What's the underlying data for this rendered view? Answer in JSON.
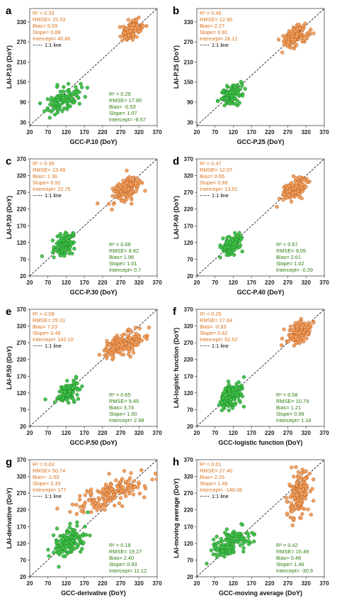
{
  "colors": {
    "green_fill": "#3fc24a",
    "green_stroke": "#1d7d22",
    "orange_fill": "#f0a060",
    "orange_stroke": "#b85a18",
    "orange_text": "#d9731f",
    "green_text": "#2f7d12",
    "identity_line": "#000000"
  },
  "legend_label": "1:1 line",
  "chart_data": [
    {
      "type": "scatter",
      "panel": "a",
      "xlabel": "GCC-P.10 (DoY)",
      "ylabel": "LAI-P.10 (DoY)",
      "xlim": [
        20,
        370
      ],
      "ylim": [
        20,
        370
      ],
      "ticks": [
        "20",
        "70",
        "120",
        "170",
        "220",
        "270",
        "320",
        "370"
      ],
      "y_ticks": [
        "30",
        "90",
        "150",
        "210",
        "270",
        "330"
      ],
      "y_tick_values": [
        30,
        90,
        150,
        210,
        270,
        330
      ],
      "stats_orange": [
        "R² = 0.33",
        "RMSE= 15.33",
        "Bias= 5.59",
        "Slope= 0.88",
        "Intercept= 40.86"
      ],
      "stats_green": [
        "R² = 0.29",
        "RMSE= 17.80",
        "Bias= -0.53",
        "Slope= 1.07",
        "Intercept= -8.57"
      ],
      "clusters": [
        {
          "series": "green",
          "x_center": 110,
          "y_center": 95,
          "x_spread": 22,
          "y_spread": 18,
          "n": 110,
          "seed": 11
        },
        {
          "series": "orange",
          "x_center": 298,
          "y_center": 305,
          "x_spread": 14,
          "y_spread": 13,
          "n": 140,
          "seed": 12
        }
      ]
    },
    {
      "type": "scatter",
      "panel": "b",
      "xlabel": "GCC-P.25 (DoY)",
      "ylabel": "LAI-P.25 (DoY)",
      "xlim": [
        20,
        370
      ],
      "ylim": [
        20,
        370
      ],
      "ticks": [
        "20",
        "70",
        "120",
        "170",
        "220",
        "270",
        "320",
        "370"
      ],
      "y_ticks": [
        "30",
        "90",
        "150",
        "210",
        "270",
        "330"
      ],
      "y_tick_values": [
        30,
        90,
        150,
        210,
        270,
        330
      ],
      "stats_orange": [
        "R² = 0.45",
        "RMSE= 12.90",
        "Bias= 2.27",
        "Slope= 0.91",
        "Intercept= 28.12"
      ],
      "stats_green": [],
      "clusters": [
        {
          "series": "green",
          "x_center": 115,
          "y_center": 112,
          "x_spread": 15,
          "y_spread": 14,
          "n": 120,
          "seed": 21
        },
        {
          "series": "orange",
          "x_center": 290,
          "y_center": 285,
          "x_spread": 17,
          "y_spread": 15,
          "n": 140,
          "seed": 22
        }
      ]
    },
    {
      "type": "scatter",
      "panel": "c",
      "xlabel": "GCC-P.30 (DoY)",
      "ylabel": "LAI-P.30 (DoY)",
      "xlim": [
        20,
        370
      ],
      "ylim": [
        20,
        370
      ],
      "ticks": [
        "20",
        "70",
        "120",
        "170",
        "220",
        "270",
        "320",
        "370"
      ],
      "y_ticks": [
        "20",
        "70",
        "120",
        "170",
        "220",
        "270",
        "320",
        "370"
      ],
      "y_tick_values": [
        20,
        70,
        120,
        170,
        220,
        270,
        320,
        370
      ],
      "stats_orange": [
        "R² = 0.39",
        "RMSE= 13.49",
        "Bias= 1.36",
        "Slope= 0.92",
        "Intercept= 22.75"
      ],
      "stats_green": [
        "R² = 0.68",
        "RMSE= 8.82",
        "Bias= 1.96",
        "Slope= 1.01",
        "Intercept= 0.7"
      ],
      "clusters": [
        {
          "series": "green",
          "x_center": 115,
          "y_center": 113,
          "x_spread": 15,
          "y_spread": 14,
          "n": 120,
          "seed": 31
        },
        {
          "series": "orange",
          "x_center": 285,
          "y_center": 278,
          "x_spread": 18,
          "y_spread": 17,
          "n": 140,
          "seed": 32
        }
      ]
    },
    {
      "type": "scatter",
      "panel": "d",
      "xlabel": "GCC-P.40 (DoY)",
      "ylabel": "LAI-P.40 (DoY)",
      "xlim": [
        20,
        370
      ],
      "ylim": [
        20,
        370
      ],
      "ticks": [
        "20",
        "70",
        "120",
        "170",
        "220",
        "270",
        "320",
        "370"
      ],
      "y_ticks": [
        "20",
        "70",
        "120",
        "170",
        "220",
        "270",
        "320",
        "370"
      ],
      "y_tick_values": [
        20,
        70,
        120,
        170,
        220,
        270,
        320,
        370
      ],
      "stats_orange": [
        "R² = 0.47",
        "RMSE= 12.07",
        "Bias= 0.65",
        "Slope= 0.99",
        "Intercept= 13.51"
      ],
      "stats_green": [
        "R² = 0.67",
        "RMSE= 9.05",
        "Bias= 2.61",
        "Slope= 1.02",
        "Intercept= -0.39"
      ],
      "clusters": [
        {
          "series": "green",
          "x_center": 118,
          "y_center": 115,
          "x_spread": 15,
          "y_spread": 14,
          "n": 120,
          "seed": 41
        },
        {
          "series": "orange",
          "x_center": 288,
          "y_center": 280,
          "x_spread": 17,
          "y_spread": 15,
          "n": 140,
          "seed": 42
        }
      ]
    },
    {
      "type": "scatter",
      "panel": "e",
      "xlabel": "GCC-P.50 (DoY)",
      "ylabel": "LAI-P.50 (DoY)",
      "xlim": [
        20,
        370
      ],
      "ylim": [
        20,
        370
      ],
      "ticks": [
        "20",
        "70",
        "120",
        "170",
        "220",
        "270",
        "320",
        "370"
      ],
      "y_ticks": [
        "20",
        "70",
        "120",
        "170",
        "220",
        "270",
        "320",
        "370"
      ],
      "y_tick_values": [
        20,
        70,
        120,
        170,
        220,
        270,
        320,
        370
      ],
      "stats_orange": [
        "R² = 0.09",
        "RMSE= 29.31",
        "Bias= 7.23",
        "Slope= 0.49",
        "Intercept= 142.10"
      ],
      "stats_green": [
        "R² = 0.65",
        "RMSE= 9.45",
        "Bias= 3.74",
        "Slope= 1.00",
        "Intercept= 2.98"
      ],
      "clusters": [
        {
          "series": "green",
          "x_center": 125,
          "y_center": 122,
          "x_spread": 15,
          "y_spread": 14,
          "n": 120,
          "seed": 51
        },
        {
          "series": "orange",
          "x_center": 275,
          "y_center": 265,
          "x_spread": 28,
          "y_spread": 16,
          "n": 160,
          "seed": 52
        }
      ]
    },
    {
      "type": "scatter",
      "panel": "f",
      "xlabel": "GCC-logistic function (DoY)",
      "ylabel": "LAI-logistic function (DoY)",
      "xlim": [
        20,
        370
      ],
      "ylim": [
        20,
        370
      ],
      "ticks": [
        "20",
        "70",
        "120",
        "170",
        "220",
        "270",
        "320",
        "370"
      ],
      "y_ticks": [
        "20",
        "70",
        "120",
        "170",
        "220",
        "270",
        "320",
        "370"
      ],
      "y_tick_values": [
        20,
        70,
        120,
        170,
        220,
        270,
        320,
        370
      ],
      "stats_orange": [
        "R² = 0.26",
        "RMSE= 17.64",
        "Bias= -0.93",
        "Slope= 0.82",
        "Intercept= 52.52"
      ],
      "stats_green": [
        "R² = 0.58",
        "RMSE= 10.79",
        "Bias= 1.21",
        "Slope= 0.99",
        "Intercept= 1.18"
      ],
      "clusters": [
        {
          "series": "green",
          "x_center": 115,
          "y_center": 113,
          "x_spread": 17,
          "y_spread": 17,
          "n": 120,
          "seed": 61
        },
        {
          "series": "orange",
          "x_center": 300,
          "y_center": 300,
          "x_spread": 17,
          "y_spread": 14,
          "n": 150,
          "seed": 62
        }
      ]
    },
    {
      "type": "scatter",
      "panel": "g",
      "xlabel": "GCC-derivative (DoY)",
      "ylabel": "LAI-derivative (DoY)",
      "xlim": [
        20,
        370
      ],
      "ylim": [
        20,
        370
      ],
      "ticks": [
        "20",
        "70",
        "120",
        "170",
        "220",
        "270",
        "320",
        "370"
      ],
      "y_ticks": [
        "20",
        "70",
        "120",
        "170",
        "220",
        "270",
        "320",
        "370"
      ],
      "y_tick_values": [
        20,
        70,
        120,
        170,
        220,
        270,
        320,
        370
      ],
      "stats_orange": [
        "R² = 0.03",
        "RMSE= 50.74",
        "Bias= -1.50",
        "Slope= 0.33",
        "Intercept= 177"
      ],
      "stats_green": [
        "R² = 0.18",
        "RMSE= 19.27",
        "Bias= 2.40",
        "Slope= 0.93",
        "Intercept= 11.12"
      ],
      "clusters": [
        {
          "series": "green",
          "x_center": 128,
          "y_center": 125,
          "x_spread": 22,
          "y_spread": 20,
          "n": 130,
          "seed": 71
        },
        {
          "series": "orange",
          "x_center": 245,
          "y_center": 270,
          "x_spread": 55,
          "y_spread": 20,
          "n": 170,
          "seed": 72
        }
      ]
    },
    {
      "type": "scatter",
      "panel": "h",
      "xlabel": "GCC-moving average (DoY)",
      "ylabel": "LAI-moving average (DoY)",
      "xlim": [
        20,
        370
      ],
      "ylim": [
        20,
        370
      ],
      "ticks": [
        "20",
        "70",
        "120",
        "170",
        "220",
        "270",
        "320",
        "370"
      ],
      "y_ticks": [
        "20",
        "70",
        "120",
        "170",
        "220",
        "270",
        "320",
        "370"
      ],
      "y_tick_values": [
        20,
        70,
        120,
        170,
        220,
        270,
        320,
        370
      ],
      "stats_orange": [
        "R² = 0.01",
        "RMSE= 27.40",
        "Bias= 2.15",
        "Slope= 1.46",
        "Intercept= -140.06"
      ],
      "stats_green": [
        "R² = 0.42",
        "RMSE= 15.49",
        "Bias= 0.48",
        "Slope= 1.46",
        "Intercept= -30.9"
      ],
      "clusters": [
        {
          "series": "green",
          "x_center": 115,
          "y_center": 118,
          "x_spread": 25,
          "y_spread": 20,
          "n": 130,
          "seed": 81
        },
        {
          "series": "orange",
          "x_center": 300,
          "y_center": 265,
          "x_spread": 14,
          "y_spread": 32,
          "n": 150,
          "seed": 82
        }
      ]
    }
  ]
}
